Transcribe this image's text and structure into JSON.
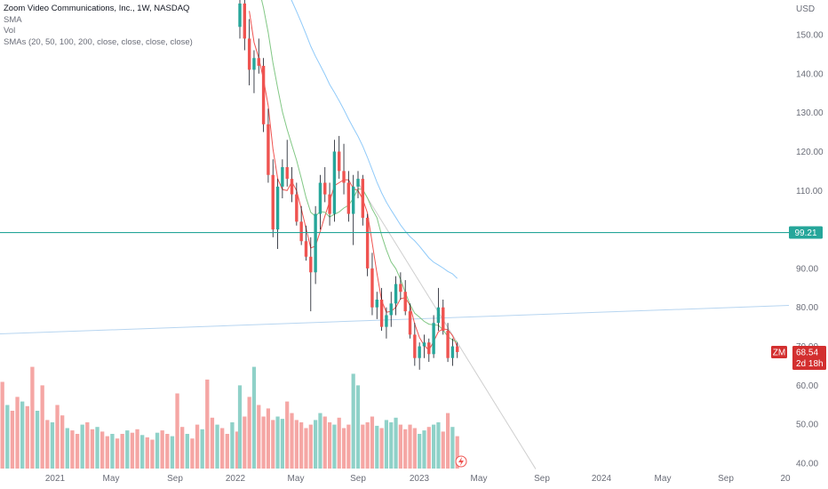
{
  "legend": {
    "title": "Zoom Video Communications, Inc., 1W, NASDAQ",
    "sma": "SMA",
    "vol": "Vol",
    "smas": "SMAs (20, 50, 100, 200, close, close, close, close)"
  },
  "currency": "USD",
  "horizontal_line": {
    "label": "99.21",
    "color": "#26a69a"
  },
  "price_badge": {
    "symbol": "ZM",
    "price": "68.54",
    "countdown": "2d 18h",
    "color": "#d32f2f"
  },
  "colors": {
    "up": "#26a69a",
    "down": "#ef5350",
    "vol_up": "#8fd1c8",
    "vol_down": "#f5a6a4",
    "sma20": "#ef5350",
    "sma50": "#81c784",
    "sma100": "#90caf9",
    "trendline": "#b7d5f0"
  },
  "chart_data": {
    "type": "candlestick",
    "y_ticks": [
      "150.00",
      "140.00",
      "130.00",
      "120.00",
      "110.00",
      "90.00",
      "80.00",
      "70.00",
      "60.00",
      "50.00",
      "40.00"
    ],
    "x_ticks": [
      "2021",
      "May",
      "Sep",
      "2022",
      "May",
      "Sep",
      "2023",
      "May",
      "Sep",
      "2024",
      "May",
      "Sep",
      "20"
    ],
    "ylim": [
      38,
      160
    ],
    "candles": [
      {
        "o": 152,
        "h": 162,
        "l": 149,
        "c": 158
      },
      {
        "o": 158,
        "h": 161,
        "l": 146,
        "c": 149
      },
      {
        "o": 149,
        "h": 154,
        "l": 137,
        "c": 141
      },
      {
        "o": 141,
        "h": 146,
        "l": 135,
        "c": 144
      },
      {
        "o": 144,
        "h": 149,
        "l": 140,
        "c": 142
      },
      {
        "o": 142,
        "h": 144,
        "l": 125,
        "c": 127
      },
      {
        "o": 127,
        "h": 131,
        "l": 112,
        "c": 114
      },
      {
        "o": 114,
        "h": 118,
        "l": 98,
        "c": 100
      },
      {
        "o": 100,
        "h": 113,
        "l": 95,
        "c": 111
      },
      {
        "o": 111,
        "h": 118,
        "l": 108,
        "c": 116
      },
      {
        "o": 116,
        "h": 123,
        "l": 111,
        "c": 113
      },
      {
        "o": 113,
        "h": 116,
        "l": 107,
        "c": 109
      },
      {
        "o": 109,
        "h": 112,
        "l": 101,
        "c": 102
      },
      {
        "o": 102,
        "h": 106,
        "l": 96,
        "c": 97
      },
      {
        "o": 97,
        "h": 101,
        "l": 92,
        "c": 93
      },
      {
        "o": 93,
        "h": 98,
        "l": 79,
        "c": 89
      },
      {
        "o": 89,
        "h": 106,
        "l": 86,
        "c": 104
      },
      {
        "o": 104,
        "h": 114,
        "l": 100,
        "c": 112
      },
      {
        "o": 112,
        "h": 116,
        "l": 107,
        "c": 109
      },
      {
        "o": 109,
        "h": 112,
        "l": 101,
        "c": 104
      },
      {
        "o": 104,
        "h": 123,
        "l": 102,
        "c": 120
      },
      {
        "o": 120,
        "h": 124,
        "l": 113,
        "c": 115
      },
      {
        "o": 115,
        "h": 122,
        "l": 109,
        "c": 112
      },
      {
        "o": 112,
        "h": 115,
        "l": 102,
        "c": 104
      },
      {
        "o": 104,
        "h": 114,
        "l": 96,
        "c": 111
      },
      {
        "o": 111,
        "h": 115,
        "l": 108,
        "c": 113
      },
      {
        "o": 113,
        "h": 114,
        "l": 101,
        "c": 103
      },
      {
        "o": 103,
        "h": 104,
        "l": 88,
        "c": 90
      },
      {
        "o": 90,
        "h": 94,
        "l": 78,
        "c": 80
      },
      {
        "o": 80,
        "h": 84,
        "l": 77,
        "c": 82
      },
      {
        "o": 82,
        "h": 85,
        "l": 74,
        "c": 75
      },
      {
        "o": 75,
        "h": 80,
        "l": 72,
        "c": 78
      },
      {
        "o": 78,
        "h": 84,
        "l": 75,
        "c": 81
      },
      {
        "o": 81,
        "h": 88,
        "l": 78,
        "c": 86
      },
      {
        "o": 86,
        "h": 89,
        "l": 82,
        "c": 84
      },
      {
        "o": 84,
        "h": 87,
        "l": 78,
        "c": 79
      },
      {
        "o": 79,
        "h": 81,
        "l": 72,
        "c": 73
      },
      {
        "o": 73,
        "h": 76,
        "l": 65,
        "c": 67
      },
      {
        "o": 67,
        "h": 71,
        "l": 64,
        "c": 70
      },
      {
        "o": 70,
        "h": 73,
        "l": 67,
        "c": 71
      },
      {
        "o": 71,
        "h": 72,
        "l": 66,
        "c": 68
      },
      {
        "o": 68,
        "h": 78,
        "l": 67,
        "c": 76
      },
      {
        "o": 76,
        "h": 85,
        "l": 74,
        "c": 80
      },
      {
        "o": 80,
        "h": 82,
        "l": 73,
        "c": 74
      },
      {
        "o": 74,
        "h": 76,
        "l": 66,
        "c": 67
      },
      {
        "o": 67,
        "h": 72,
        "l": 65,
        "c": 70
      },
      {
        "o": 70,
        "h": 71,
        "l": 67,
        "c": 68.54
      }
    ],
    "volumes": [
      0.72,
      0.45,
      0.62,
      0.88,
      0.55,
      0.45,
      0.52,
      0.42,
      0.45,
      0.43,
      0.58,
      0.48,
      0.42,
      0.4,
      0.35,
      0.38,
      0.42,
      0.48,
      0.45,
      0.4,
      0.38,
      0.44,
      0.35,
      0.38,
      0.82,
      0.72,
      0.38,
      0.4,
      0.45,
      0.37,
      0.35,
      0.42,
      0.4,
      0.44,
      0.38,
      0.34,
      0.38,
      0.35,
      0.3,
      0.33,
      0.36,
      0.38,
      0.4,
      0.32,
      0.48,
      0.36,
      0.28
    ],
    "price_range": [
      38,
      162
    ]
  }
}
